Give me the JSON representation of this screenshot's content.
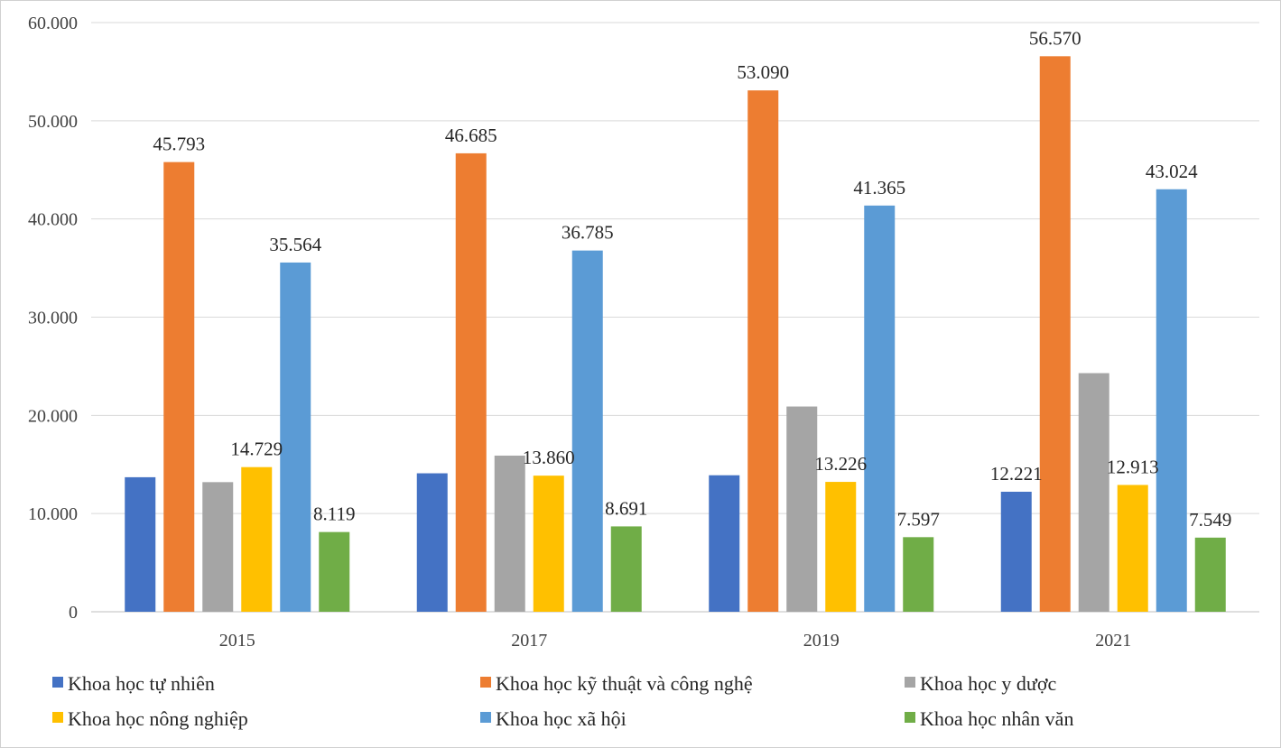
{
  "chart_data": {
    "type": "bar",
    "categories": [
      "2015",
      "2017",
      "2019",
      "2021"
    ],
    "ylim": [
      0,
      60000
    ],
    "ytick_values": [
      0,
      10000,
      20000,
      30000,
      40000,
      50000,
      60000
    ],
    "ytick_labels": [
      "0",
      "10.000",
      "20.000",
      "30.000",
      "40.000",
      "50.000",
      "60.000"
    ],
    "gridlines": true,
    "legend_position": "bottom",
    "series": [
      {
        "name": "Khoa học tự nhiên",
        "color": "#4472C4",
        "values": [
          13700,
          14100,
          13900,
          12221
        ],
        "data_labels": [
          "",
          "",
          "",
          "12.221"
        ]
      },
      {
        "name": "Khoa học kỹ thuật và công nghệ",
        "color": "#ED7D31",
        "values": [
          45793,
          46685,
          53090,
          56570
        ],
        "data_labels": [
          "45.793",
          "46.685",
          "53.090",
          "56.570"
        ]
      },
      {
        "name": "Khoa học y dược",
        "color": "#A5A5A5",
        "values": [
          13200,
          15900,
          20900,
          24300
        ],
        "data_labels": [
          "",
          "",
          "",
          ""
        ]
      },
      {
        "name": "Khoa học nông nghiệp",
        "color": "#FFC000",
        "values": [
          14729,
          13860,
          13226,
          12913
        ],
        "data_labels": [
          "14.729",
          "13.860",
          "13.226",
          "12.913"
        ]
      },
      {
        "name": "Khoa học xã hội",
        "color": "#5B9BD5",
        "values": [
          35564,
          36785,
          41365,
          43024
        ],
        "data_labels": [
          "35.564",
          "36.785",
          "41.365",
          "43.024"
        ]
      },
      {
        "name": "Khoa học nhân văn",
        "color": "#70AD47",
        "values": [
          8119,
          8691,
          7597,
          7549
        ],
        "data_labels": [
          "8.119",
          "8.691",
          "7.597",
          "7.549"
        ]
      }
    ]
  }
}
